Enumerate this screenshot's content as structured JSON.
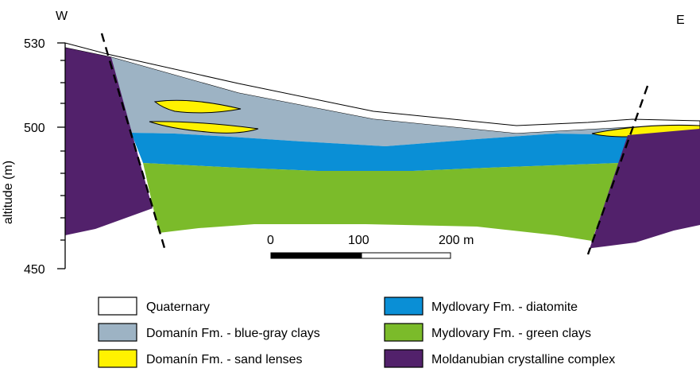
{
  "orientation": {
    "west": "W",
    "east": "E"
  },
  "axis": {
    "ylabel": "altitude (m)",
    "ticks": [
      "530",
      "500",
      "450"
    ]
  },
  "scale_bar": {
    "labels": [
      "0",
      "100",
      "200 m"
    ]
  },
  "colors": {
    "quaternary": "#ffffff",
    "blue_gray_clays": "#9db3c4",
    "sand_lenses": "#fff200",
    "diatomite": "#0a8fd6",
    "green_clays": "#7bbb2a",
    "crystalline": "#52216b"
  },
  "legend": [
    {
      "key": "quaternary",
      "label": "Quaternary"
    },
    {
      "key": "blue_gray_clays",
      "label": "Domanín Fm. - blue-gray clays"
    },
    {
      "key": "sand_lenses",
      "label": "Domanín Fm. - sand lenses"
    },
    {
      "key": "diatomite",
      "label": "Mydlovary Fm. - diatomite"
    },
    {
      "key": "green_clays",
      "label": "Mydlovary Fm. - green clays"
    },
    {
      "key": "crystalline",
      "label": "Moldanubian crystalline complex"
    }
  ]
}
